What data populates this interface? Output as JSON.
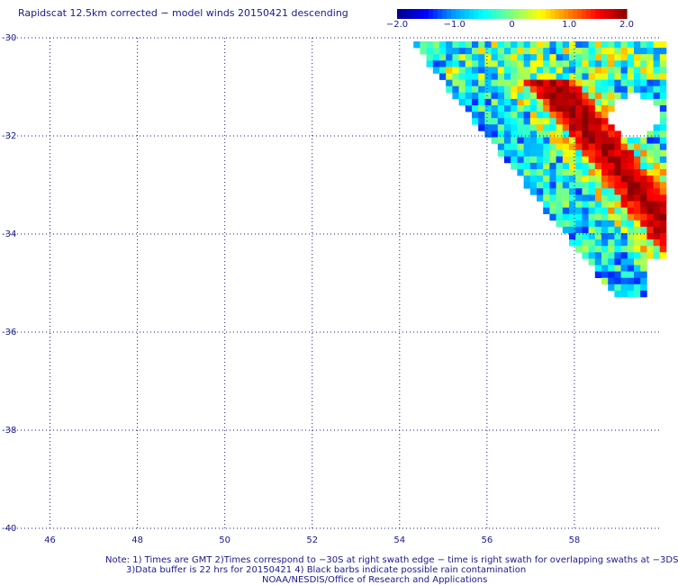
{
  "title": "Rapidscat 12.5km corrected − model winds 20150421 descending",
  "colorbar": {
    "ticks": [
      "−2.0",
      "−1.0",
      "0",
      "1.0",
      "2.0"
    ],
    "tick_values": [
      -2.0,
      -1.0,
      0,
      1.0,
      2.0
    ],
    "range": [
      -2.0,
      2.0
    ],
    "colors": [
      "#00008b",
      "#0000ff",
      "#00a0ff",
      "#00ffff",
      "#7fff7f",
      "#ffff00",
      "#ff8000",
      "#ff0000",
      "#8b0000"
    ]
  },
  "map": {
    "lon_ticks": [
      "46",
      "48",
      "50",
      "52",
      "54",
      "56",
      "58"
    ],
    "lon_values": [
      46,
      48,
      50,
      52,
      54,
      56,
      58
    ],
    "lat_ticks": [
      "-30",
      "-32",
      "-34",
      "-36",
      "-38",
      "-40"
    ],
    "lat_values": [
      -30,
      -32,
      -34,
      -36,
      -38,
      -40
    ],
    "lon_range": [
      45,
      60
    ],
    "lat_range": [
      -40,
      -30
    ],
    "grid": "dotted",
    "gridline_color": "#1a1a8c"
  },
  "notes": {
    "line1": "Note: 1) Times are GMT 2)Times correspond to −30S at right swath edge − time is right swath for overlapping swaths at −3DS",
    "line2": "3)Data buffer is 22 hrs for 20150421 4) Black barbs indicate possible rain contamination",
    "line3": "NOAA/NESDIS/Office of Research and Applications"
  }
}
